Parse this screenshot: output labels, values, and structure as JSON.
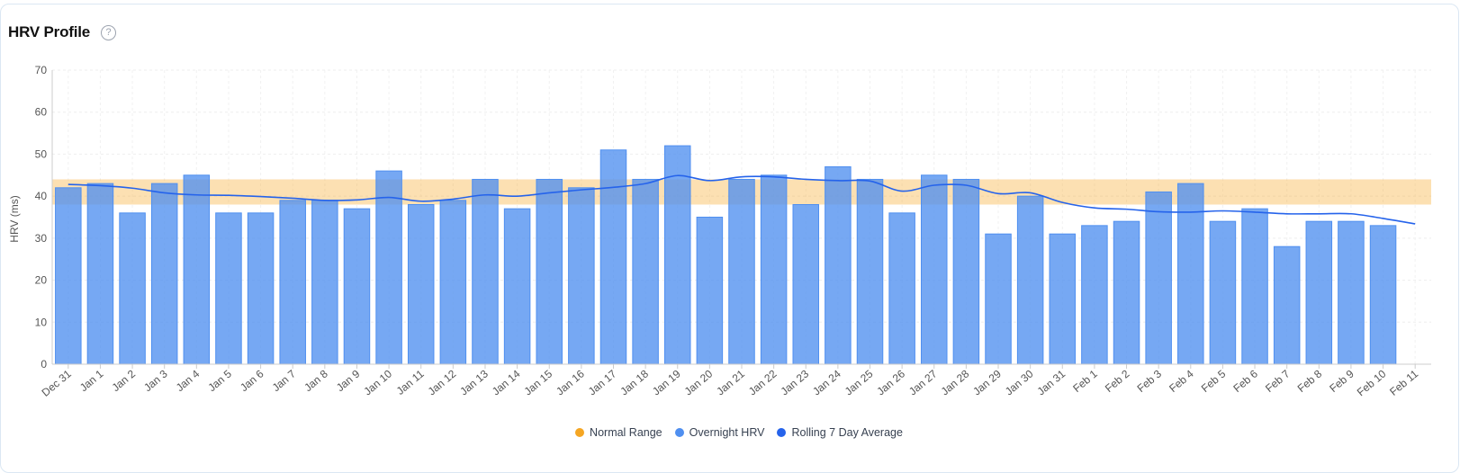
{
  "header": {
    "title": "HRV Profile",
    "help_glyph": "?"
  },
  "colors": {
    "normal_range": "#f5a623",
    "overnight_hrv": "#4f8ff0",
    "rolling_avg": "#2563eb"
  },
  "chart_data": {
    "type": "bar",
    "title": "HRV Profile",
    "xlabel": "",
    "ylabel": "HRV (ms)",
    "ylim": [
      0,
      70
    ],
    "yticks": [
      0,
      10,
      20,
      30,
      40,
      50,
      60,
      70
    ],
    "grid": true,
    "legend_position": "bottom-center",
    "categories": [
      "Dec 31",
      "Jan 1",
      "Jan 2",
      "Jan 3",
      "Jan 4",
      "Jan 5",
      "Jan 6",
      "Jan 7",
      "Jan 8",
      "Jan 9",
      "Jan 10",
      "Jan 11",
      "Jan 12",
      "Jan 13",
      "Jan 14",
      "Jan 15",
      "Jan 16",
      "Jan 17",
      "Jan 18",
      "Jan 19",
      "Jan 20",
      "Jan 21",
      "Jan 22",
      "Jan 23",
      "Jan 24",
      "Jan 25",
      "Jan 26",
      "Jan 27",
      "Jan 28",
      "Jan 29",
      "Jan 30",
      "Jan 31",
      "Feb 1",
      "Feb 2",
      "Feb 3",
      "Feb 4",
      "Feb 5",
      "Feb 6",
      "Feb 7",
      "Feb 8",
      "Feb 9",
      "Feb 10",
      "Feb 11"
    ],
    "normal_range": {
      "name": "Normal Range",
      "low": 38,
      "high": 44
    },
    "series": [
      {
        "name": "Overnight HRV",
        "type": "bar",
        "values": [
          42,
          43,
          36,
          43,
          45,
          36,
          36,
          39,
          39,
          37,
          46,
          38,
          39,
          44,
          37,
          44,
          42,
          51,
          44,
          52,
          35,
          44,
          45,
          38,
          47,
          44,
          36,
          45,
          44,
          31,
          40,
          31,
          33,
          34,
          41,
          43,
          34,
          37,
          28,
          34,
          34,
          33,
          null
        ]
      },
      {
        "name": "Rolling 7 Day Average",
        "type": "line",
        "values": [
          42.8,
          42.5,
          41.9,
          40.8,
          40.3,
          40.2,
          39.9,
          39.5,
          39.0,
          39.1,
          39.7,
          38.8,
          39.3,
          40.3,
          40.0,
          40.8,
          41.5,
          42.1,
          43.0,
          44.9,
          43.7,
          44.6,
          44.6,
          44.0,
          43.7,
          43.6,
          41.2,
          42.6,
          42.6,
          40.6,
          40.8,
          38.5,
          37.2,
          36.9,
          36.3,
          36.2,
          36.5,
          36.2,
          35.8,
          35.8,
          35.8,
          34.7,
          33.4
        ]
      }
    ]
  }
}
